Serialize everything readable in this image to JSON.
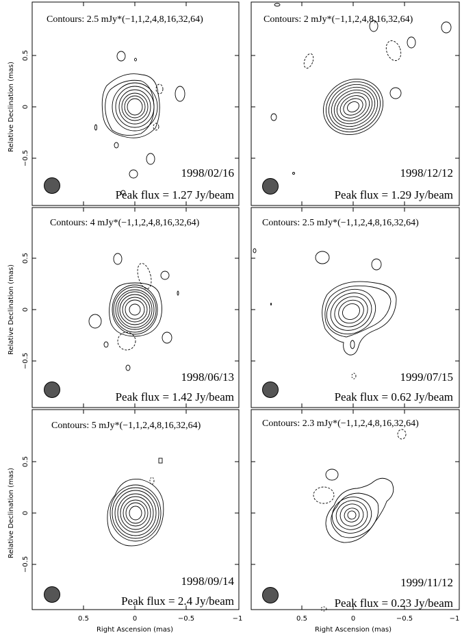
{
  "figure": {
    "xlabel": "Right Ascension  (mas)",
    "ylabel": "Relative Declination  (mas)",
    "x_ticks": [
      "0.5",
      "0",
      "−0.5",
      "−1"
    ],
    "y_ticks": [
      "0.5",
      "0",
      "−0.5"
    ],
    "beam_color": "#555555",
    "line_color": "#000000"
  },
  "panels": [
    {
      "contours": "Contours: 2.5 mJy*(−1,1,2,4,8,16,32,64)",
      "date": "1998/02/16",
      "peak": "Peak flux = 1.27 Jy/beam"
    },
    {
      "contours": "Contours: 2 mJy*(−1,1,2,4,8,16,32,64)",
      "date": "1998/12/12",
      "peak": "Peak flux = 1.29 Jy/beam"
    },
    {
      "contours": "Contours: 4 mJy*(−1,1,2,4,8,16,32,64)",
      "date": "1998/06/13",
      "peak": "Peak flux = 1.42 Jy/beam"
    },
    {
      "contours": "Contours: 2.5 mJy*(−1,1,2,4,8,16,32,64)",
      "date": "1999/07/15",
      "peak": "Peak flux = 0.62 Jy/beam"
    },
    {
      "contours": "Contours: 5 mJy*(−1,1,2,4,8,16,32,64)",
      "date": "1998/09/14",
      "peak": "Peak flux = 2.4 Jy/beam"
    },
    {
      "contours": "Contours: 2.3 mJy*(−1,1,2,4,8,16,32,64)",
      "date": "1999/11/12",
      "peak": "Peak flux = 0.23 Jy/beam"
    }
  ]
}
